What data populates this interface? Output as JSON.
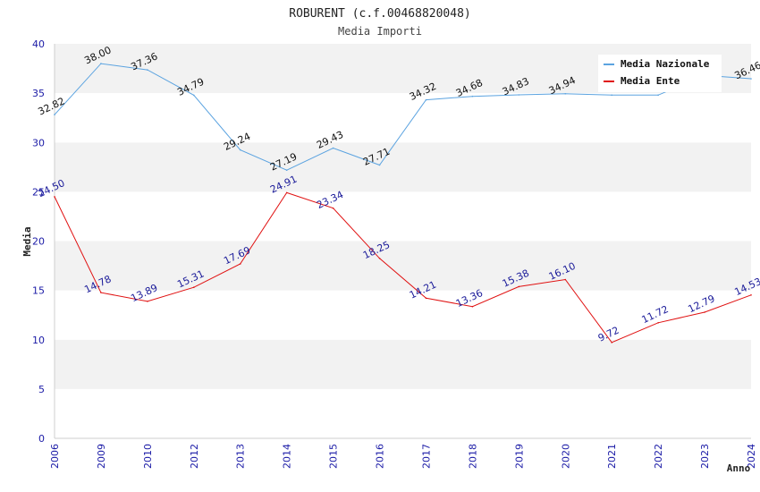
{
  "chart_data": {
    "type": "line",
    "title": "ROBURENT (c.f.00468820048)",
    "subtitle": "Media Importi",
    "xlabel": "Anno",
    "ylabel": "Media",
    "ylim": [
      0,
      40
    ],
    "yticks": [
      0,
      5,
      10,
      15,
      20,
      25,
      30,
      35,
      40
    ],
    "categories": [
      "2006",
      "2009",
      "2010",
      "2012",
      "2013",
      "2014",
      "2015",
      "2016",
      "2017",
      "2018",
      "2019",
      "2020",
      "2021",
      "2022",
      "2023",
      "2024"
    ],
    "series": [
      {
        "name": "Media Nazionale",
        "color": "#5ba3e0",
        "label_color": "#111111",
        "values": [
          32.82,
          38.0,
          37.36,
          34.79,
          29.24,
          27.19,
          29.43,
          27.71,
          34.32,
          34.68,
          34.83,
          34.94,
          34.8,
          34.8,
          36.8,
          36.46
        ],
        "labels": [
          "32.82",
          "38.00",
          "37.36",
          "34.79",
          "29.24",
          "27.19",
          "29.43",
          "27.71",
          "34.32",
          "34.68",
          "34.83",
          "34.94",
          "",
          "",
          "",
          "36.46"
        ]
      },
      {
        "name": "Media Ente",
        "color": "#e01010",
        "label_color": "#1a1a99",
        "values": [
          24.5,
          14.78,
          13.89,
          15.31,
          17.69,
          24.91,
          23.34,
          18.25,
          14.21,
          13.36,
          15.38,
          16.1,
          9.72,
          11.72,
          12.79,
          14.53
        ],
        "labels": [
          "24.50",
          "14.78",
          "13.89",
          "15.31",
          "17.69",
          "24.91",
          "23.34",
          "18.25",
          "14.21",
          "13.36",
          "15.38",
          "16.10",
          "9.72",
          "11.72",
          "12.79",
          "14.53"
        ]
      }
    ],
    "legend": "top-right",
    "grid": true
  }
}
